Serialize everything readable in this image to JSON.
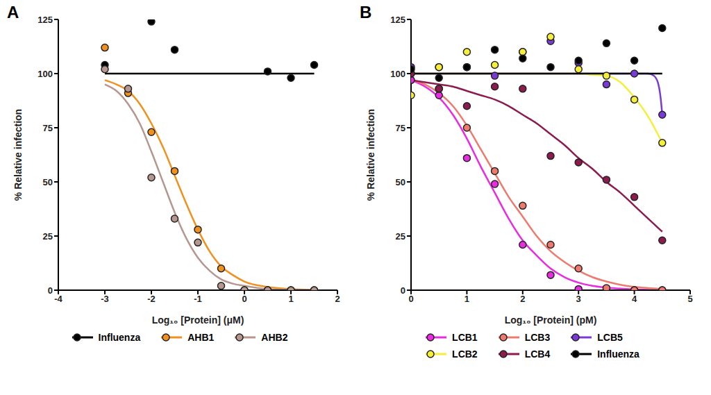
{
  "chart_data": [
    {
      "type": "scatter",
      "title": "A",
      "x_label": "Log₁₀ [Protein] (μM)",
      "y_label": "% Relative infection",
      "xlim": [
        -4,
        2
      ],
      "xticks": [
        -4,
        -3,
        -2,
        -1,
        0,
        1,
        2
      ],
      "ylim": [
        0,
        125
      ],
      "yticks": [
        0,
        25,
        50,
        75,
        100,
        125
      ],
      "grid": false,
      "legend": "bottom",
      "series": [
        {
          "name": "Influenza",
          "color": "#000000",
          "x": [
            -3,
            -2,
            -1.5,
            0.5,
            1,
            1.5
          ],
          "values": [
            104,
            124,
            111,
            101,
            98,
            104
          ],
          "fit_x": [
            -3,
            1.5
          ],
          "fit_values": [
            100,
            100
          ]
        },
        {
          "name": "AHB1",
          "color": "#f0901e",
          "x": [
            -3,
            -2.5,
            -2,
            -1.5,
            -1,
            -0.5,
            0,
            0.5,
            1,
            1.5
          ],
          "values": [
            112,
            91,
            73,
            55,
            28,
            10,
            0,
            0,
            0,
            0
          ],
          "fit_x": [
            -3,
            -2.75,
            -2.5,
            -2.25,
            -2,
            -1.75,
            -1.5,
            -1.25,
            -1,
            -0.75,
            -0.5,
            -0.25,
            0,
            0.5,
            1,
            1.5
          ],
          "fit_values": [
            97,
            95,
            92,
            86,
            77,
            66,
            53,
            40,
            28,
            18,
            11,
            7,
            4,
            1.5,
            0.5,
            0.2
          ]
        },
        {
          "name": "AHB2",
          "color": "#b5978f",
          "x": [
            -3,
            -2.5,
            -2,
            -1.5,
            -1,
            -0.5,
            0,
            0.5,
            1,
            1.5
          ],
          "values": [
            102,
            93,
            52,
            33,
            22,
            2,
            0,
            0,
            0,
            0
          ],
          "fit_x": [
            -3,
            -2.75,
            -2.5,
            -2.25,
            -2,
            -1.75,
            -1.5,
            -1.25,
            -1,
            -0.75,
            -0.5,
            -0.25,
            0,
            0.5,
            1,
            1.5
          ],
          "fit_values": [
            95,
            92,
            86,
            77,
            64,
            50,
            36,
            24,
            15,
            9,
            5,
            3,
            2,
            0.5,
            0.2,
            0.1
          ]
        }
      ]
    },
    {
      "type": "scatter",
      "title": "B",
      "x_label": "Log₁₀ [Protein] (pM)",
      "y_label": "% Relative infection",
      "xlim": [
        0,
        5
      ],
      "xticks": [
        0,
        1,
        2,
        3,
        4,
        5
      ],
      "ylim": [
        0,
        125
      ],
      "yticks": [
        0,
        25,
        50,
        75,
        100,
        125
      ],
      "grid": false,
      "legend": "bottom",
      "series": [
        {
          "name": "LCB1",
          "color": "#e82ce0",
          "x": [
            0,
            0.5,
            1,
            1.5,
            2,
            2.5,
            3,
            3.5,
            4,
            4.5
          ],
          "values": [
            97,
            90,
            61,
            49,
            21,
            7,
            0.5,
            0,
            0,
            0
          ],
          "fit_x": [
            0,
            0.25,
            0.5,
            0.75,
            1,
            1.25,
            1.5,
            1.75,
            2,
            2.25,
            2.5,
            2.75,
            3,
            3.25,
            3.5,
            3.75,
            4,
            4.25,
            4.5
          ],
          "fit_values": [
            97,
            94,
            89,
            81,
            70,
            57,
            45,
            33,
            23,
            16,
            10,
            6,
            3.5,
            2,
            1.2,
            0.7,
            0.4,
            0.2,
            0.1
          ]
        },
        {
          "name": "LCB3",
          "color": "#ee7a6e",
          "x": [
            0,
            0.5,
            1,
            1.5,
            2,
            2.5,
            3,
            3.5,
            4,
            4.5
          ],
          "values": [
            100,
            93,
            75,
            55,
            39,
            21,
            10,
            1,
            0,
            0
          ],
          "fit_x": [
            0,
            0.25,
            0.5,
            0.75,
            1,
            1.25,
            1.5,
            1.75,
            2,
            2.25,
            2.5,
            2.75,
            3,
            3.25,
            3.5,
            3.75,
            4,
            4.25,
            4.5
          ],
          "fit_values": [
            97,
            95,
            91,
            85,
            76,
            65,
            54,
            43,
            34,
            25,
            18,
            13,
            9,
            6,
            4,
            2.5,
            1.5,
            1,
            0.6
          ]
        },
        {
          "name": "LCB5",
          "color": "#7a3ad6",
          "x": [
            0,
            0.5,
            1,
            1.5,
            2,
            2.5,
            3,
            3.5,
            4,
            4.5
          ],
          "values": [
            103,
            103,
            103,
            99,
            110,
            115,
            105,
            95,
            100,
            81
          ],
          "fit_x": [
            0,
            1,
            2,
            3,
            4,
            4.25,
            4.35,
            4.42,
            4.47,
            4.5
          ],
          "fit_values": [
            100,
            100,
            100,
            100,
            100,
            100,
            99,
            96,
            89,
            81
          ]
        },
        {
          "name": "LCB2",
          "color": "#f5ee3b",
          "x": [
            0,
            0.5,
            1,
            1.5,
            2,
            2.5,
            3,
            3.5,
            4,
            4.5
          ],
          "values": [
            90,
            103,
            110,
            104,
            110,
            117,
            102,
            99,
            88,
            68
          ],
          "fit_x": [
            0,
            1,
            2,
            2.5,
            3,
            3.25,
            3.5,
            3.75,
            4,
            4.25,
            4.5
          ],
          "fit_values": [
            100,
            100,
            100,
            100,
            100,
            99.5,
            99,
            96,
            89,
            80,
            68
          ]
        },
        {
          "name": "LCB4",
          "color": "#8c1b4e",
          "x": [
            0,
            0.5,
            1,
            1.5,
            2,
            2.5,
            3,
            3.5,
            4,
            4.5
          ],
          "values": [
            100,
            93,
            85,
            94,
            93,
            62,
            59,
            51,
            43,
            23
          ],
          "fit_x": [
            0,
            0.25,
            0.5,
            0.75,
            1,
            1.25,
            1.5,
            1.75,
            2,
            2.25,
            2.5,
            2.75,
            3,
            3.25,
            3.5,
            3.75,
            4,
            4.25,
            4.5
          ],
          "fit_values": [
            97,
            96,
            95,
            94,
            92,
            90,
            88,
            85,
            81,
            77,
            72,
            67,
            61,
            56,
            50,
            45,
            39,
            33,
            27
          ]
        },
        {
          "name": "Influenza",
          "color": "#000000",
          "x": [
            0,
            0.5,
            1,
            1.5,
            2,
            2.5,
            3,
            3.5,
            4,
            4.5
          ],
          "values": [
            102,
            98,
            103,
            111,
            107,
            103,
            106,
            114,
            106,
            121
          ],
          "fit_x": [
            0,
            4.5
          ],
          "fit_values": [
            100,
            100
          ]
        }
      ]
    }
  ]
}
